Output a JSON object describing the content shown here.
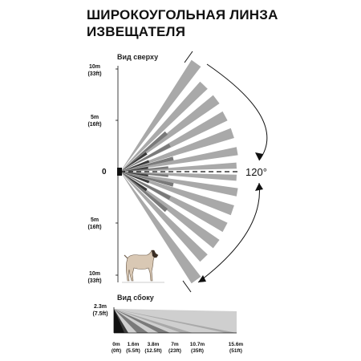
{
  "title": {
    "line1": "ШИРОКОУГОЛЬНАЯ ЛИНЗА",
    "line2": "ИЗВЕЩАТЕЛЯ"
  },
  "top_view": {
    "label": "Вид сверху",
    "distances": [
      {
        "m": "10m",
        "ft": "(33ft)"
      },
      {
        "m": "5m",
        "ft": "(16ft)"
      },
      {
        "m": "0"
      },
      {
        "m": "5m",
        "ft": "(16ft)"
      },
      {
        "m": "10m",
        "ft": "(33ft)"
      }
    ],
    "angle": "120°"
  },
  "side_view": {
    "label": "Вид сбоку",
    "height": {
      "m": "2.3m",
      "ft": "(7.5ft)"
    },
    "distances": [
      {
        "m": "0m",
        "ft": "(0ft)"
      },
      {
        "m": "1.6m",
        "ft": "(5.5ft)"
      },
      {
        "m": "3.8m",
        "ft": "(12.5ft)"
      },
      {
        "m": "7m",
        "ft": "(23ft)"
      },
      {
        "m": "10.7m",
        "ft": "(35ft)"
      },
      {
        "m": "15.6m",
        "ft": "(51ft)"
      }
    ]
  },
  "colors": {
    "beam_light": "#a9a9a9",
    "beam_mid": "#7a7a7a",
    "beam_dark": "#3a3a3a"
  }
}
